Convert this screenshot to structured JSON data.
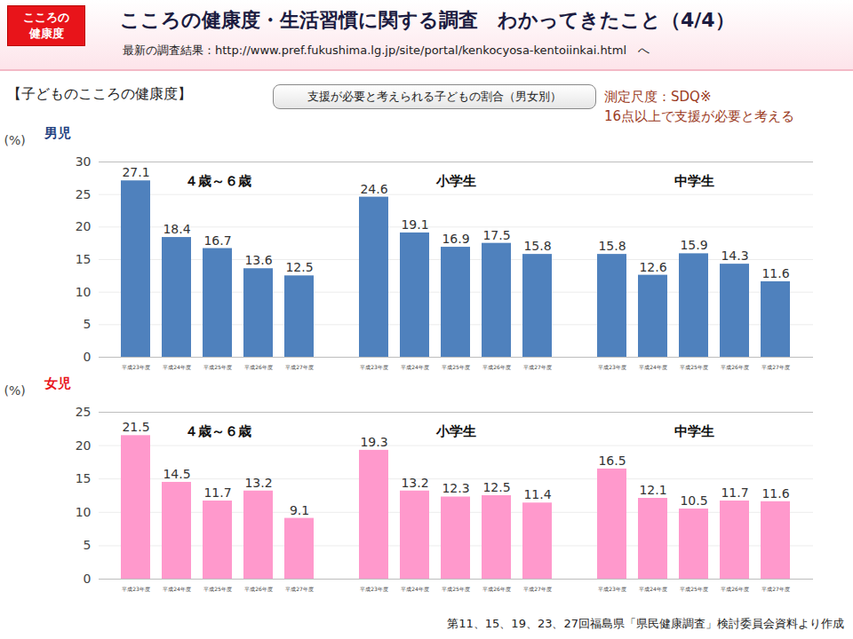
{
  "header": {
    "badge": "こころの\n健康度",
    "title": "こころの健康度・生活習慣に関する調査　わかってきたこと（4/4）",
    "subtitle": "最新の調査結果：http://www.pref.fukushima.lg.jp/site/portal/kenkocyosa-kentoiinkai.html　へ"
  },
  "section": "【子どものこころの健康度】",
  "box": "支援が必要と考えられる子どもの割合（男女別）",
  "note": [
    "測定尺度：SDQ※",
    "16点以上で支援が必要と考える"
  ],
  "source": "第11、15、19、23、27回福島県「県民健康調査」検討委員会資料より作成",
  "chart_data": [
    {
      "type": "bar",
      "title": "男児",
      "title_color": "#1f3f7f",
      "y_label": "(%)",
      "color": "#4f81bd",
      "ylim": [
        0,
        30
      ],
      "yticks": [
        0,
        5,
        10,
        15,
        20,
        25,
        30
      ],
      "grid": true,
      "data_labels": true,
      "categories": [
        "平成23年度",
        "平成24年度",
        "平成25年度",
        "平成26年度",
        "平成27年度"
      ],
      "panels": [
        {
          "name": "４歳～６歳",
          "values": [
            27.1,
            18.4,
            16.7,
            13.6,
            12.5
          ]
        },
        {
          "name": "小学生",
          "values": [
            24.6,
            19.1,
            16.9,
            17.5,
            15.8
          ]
        },
        {
          "name": "中学生",
          "values": [
            15.8,
            12.6,
            15.9,
            14.3,
            11.6
          ]
        }
      ]
    },
    {
      "type": "bar",
      "title": "女児",
      "title_color": "#e8141a",
      "y_label": "(%)",
      "color": "#ff99cc",
      "ylim": [
        0,
        25
      ],
      "yticks": [
        0,
        5,
        10,
        15,
        20,
        25
      ],
      "grid": true,
      "data_labels": true,
      "categories": [
        "平成23年度",
        "平成24年度",
        "平成25年度",
        "平成26年度",
        "平成27年度"
      ],
      "panels": [
        {
          "name": "４歳～６歳",
          "values": [
            21.5,
            14.5,
            11.7,
            13.2,
            9.1
          ]
        },
        {
          "name": "小学生",
          "values": [
            19.3,
            13.2,
            12.3,
            12.5,
            11.4
          ]
        },
        {
          "name": "中学生",
          "values": [
            16.5,
            12.1,
            10.5,
            11.7,
            11.6
          ]
        }
      ]
    }
  ]
}
